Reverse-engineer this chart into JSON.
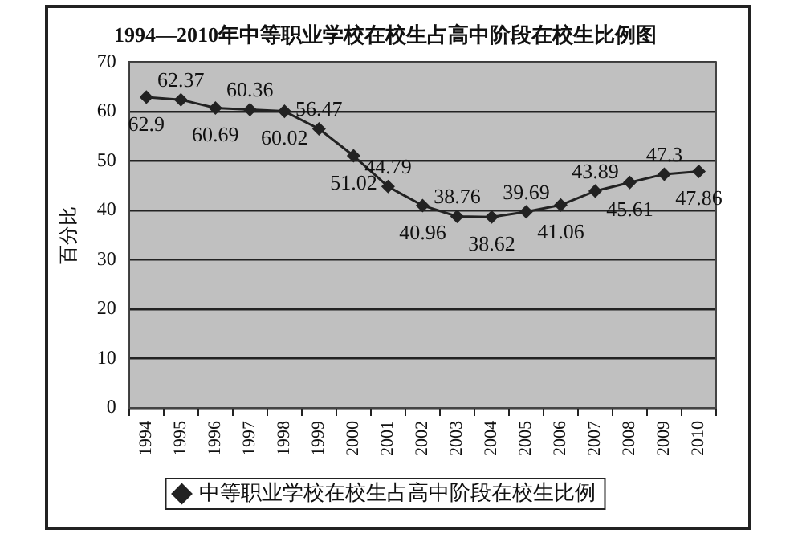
{
  "chart_data": {
    "type": "line",
    "title": "1994—2010年中等职业学校在校生占高中阶段在校生比例图",
    "ylabel": "百分比",
    "categories": [
      "1994",
      "1995",
      "1996",
      "1997",
      "1998",
      "1999",
      "2000",
      "2001",
      "2002",
      "2003",
      "2004",
      "2005",
      "2006",
      "2007",
      "2008",
      "2009",
      "2010"
    ],
    "series": [
      {
        "name": "中等职业学校在校生占高中阶段在校生比例",
        "color": "#222222",
        "values": [
          62.9,
          62.37,
          60.69,
          60.36,
          60.02,
          56.47,
          51.02,
          44.79,
          40.96,
          38.76,
          38.62,
          39.69,
          41.06,
          43.89,
          45.61,
          47.3,
          47.86
        ]
      }
    ],
    "ylim": [
      0,
      70
    ],
    "yticks": [
      0,
      10,
      20,
      30,
      40,
      50,
      60,
      70
    ],
    "grid": "y",
    "legend": "bottom",
    "marker": "diamond",
    "line_style": "solid",
    "data_labels": true
  }
}
